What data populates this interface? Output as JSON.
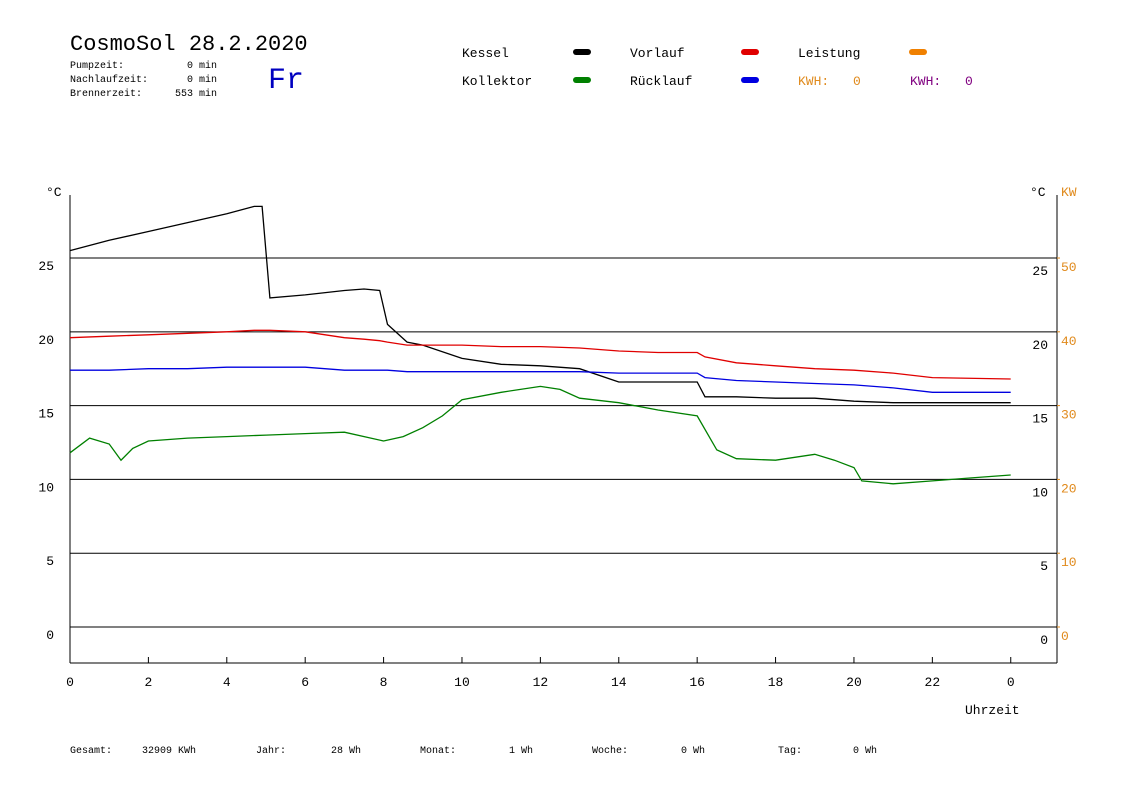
{
  "header": {
    "title": "CosmoSol 28.2.2020",
    "day": "Fr",
    "info": [
      {
        "label": "Pumpzeit:",
        "value": "0 min"
      },
      {
        "label": "Nachlaufzeit:",
        "value": "0 min"
      },
      {
        "label": "Brennerzeit:",
        "value": "553 min"
      }
    ],
    "kwh": [
      {
        "label": "KWH:",
        "value": 0,
        "color": "#e08a1c"
      },
      {
        "label": "KWH:",
        "value": 0,
        "color": "#800080"
      }
    ]
  },
  "chart_data": {
    "type": "line",
    "y_label": "°C",
    "y2_label": "KW",
    "x_label": "Uhrzeit",
    "y2_color": "#e08a1c",
    "xlim": [
      0,
      25.18
    ],
    "ylim": [
      -2.44,
      29.27
    ],
    "y2lim": [
      -4.88,
      58.54
    ],
    "xticks": [
      0,
      2,
      4,
      6,
      8,
      10,
      12,
      14,
      16,
      18,
      20,
      22,
      {
        "value": 24,
        "label": "0"
      }
    ],
    "yticks": [
      0,
      5,
      10,
      15,
      20,
      25
    ],
    "y2ticks": [
      0,
      10,
      20,
      30,
      40,
      50
    ],
    "grid": true,
    "series": [
      {
        "name": "Kessel",
        "color": "#000000",
        "x": [
          0,
          1,
          2,
          3,
          4,
          4.7,
          4.9,
          5.1,
          6,
          7,
          7.5,
          7.9,
          8.1,
          8.6,
          9,
          10,
          11,
          12,
          13,
          14,
          15,
          16,
          16.2,
          17,
          18,
          19,
          20,
          21,
          22,
          24
        ],
        "values": [
          25.5,
          26.2,
          26.8,
          27.4,
          28.0,
          28.5,
          28.5,
          22.3,
          22.5,
          22.8,
          22.9,
          22.8,
          20.5,
          19.3,
          19.1,
          18.2,
          17.8,
          17.7,
          17.5,
          16.6,
          16.6,
          16.6,
          15.6,
          15.6,
          15.5,
          15.5,
          15.3,
          15.2,
          15.2,
          15.2
        ]
      },
      {
        "name": "Vorlauf",
        "color": "#e00000",
        "x": [
          0,
          1,
          2,
          3,
          4,
          4.7,
          4.9,
          5.1,
          6,
          7,
          7.5,
          7.9,
          8.1,
          8.6,
          9,
          10,
          11,
          12,
          13,
          14,
          15,
          16,
          16.2,
          17,
          18,
          19,
          20,
          21,
          22,
          24
        ],
        "values": [
          19.6,
          19.7,
          19.8,
          19.9,
          20.0,
          20.1,
          20.1,
          20.1,
          20.0,
          19.6,
          19.5,
          19.4,
          19.3,
          19.1,
          19.1,
          19.1,
          19.0,
          19.0,
          18.9,
          18.7,
          18.6,
          18.6,
          18.3,
          17.9,
          17.7,
          17.5,
          17.4,
          17.2,
          16.9,
          16.8
        ]
      },
      {
        "name": "Leistung",
        "color": "#f08000",
        "x": [],
        "values": []
      },
      {
        "name": "Kollektor",
        "color": "#008000",
        "x": [
          0,
          0.5,
          1,
          1.3,
          1.6,
          2,
          3,
          4,
          5,
          6,
          7,
          8,
          8.5,
          9,
          9.5,
          10,
          11,
          12,
          12.5,
          13,
          14,
          15,
          16,
          16.5,
          17,
          18,
          19,
          19.5,
          20,
          20.2,
          21,
          22,
          23,
          24
        ],
        "values": [
          11.8,
          12.8,
          12.4,
          11.3,
          12.1,
          12.6,
          12.8,
          12.9,
          13.0,
          13.1,
          13.2,
          12.6,
          12.9,
          13.5,
          14.3,
          15.4,
          15.9,
          16.3,
          16.1,
          15.5,
          15.2,
          14.7,
          14.3,
          12.0,
          11.4,
          11.3,
          11.7,
          11.3,
          10.8,
          9.9,
          9.7,
          9.9,
          10.1,
          10.3
        ]
      },
      {
        "name": "Rücklauf",
        "color": "#0000e0",
        "x": [
          0,
          1,
          2,
          3,
          4,
          4.7,
          4.9,
          5.1,
          6,
          7,
          7.5,
          7.9,
          8.1,
          8.6,
          9,
          10,
          11,
          12,
          13,
          14,
          15,
          16,
          16.2,
          17,
          18,
          19,
          20,
          21,
          22,
          24
        ],
        "values": [
          17.4,
          17.4,
          17.5,
          17.5,
          17.6,
          17.6,
          17.6,
          17.6,
          17.6,
          17.4,
          17.4,
          17.4,
          17.4,
          17.3,
          17.3,
          17.3,
          17.3,
          17.3,
          17.3,
          17.2,
          17.2,
          17.2,
          16.9,
          16.7,
          16.6,
          16.5,
          16.4,
          16.2,
          15.9,
          15.9
        ]
      }
    ]
  },
  "footer": [
    {
      "label": "Gesamt:",
      "value": "32909 KWh"
    },
    {
      "label": "Jahr:",
      "value": "28 Wh"
    },
    {
      "label": "Monat:",
      "value": "1 Wh"
    },
    {
      "label": "Woche:",
      "value": "0 Wh"
    },
    {
      "label": "Tag:",
      "value": "0 Wh"
    }
  ]
}
